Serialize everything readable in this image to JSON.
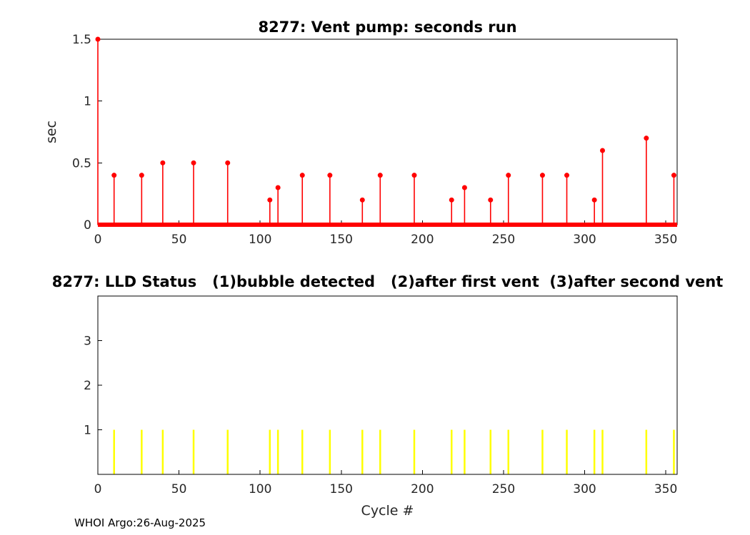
{
  "figure": {
    "footer": "WHOI Argo:26-Aug-2025",
    "background": "#ffffff"
  },
  "chart_data": [
    {
      "type": "stem",
      "title": "8277: Vent pump: seconds run",
      "ylabel": "sec",
      "xlabel": "",
      "xlim": [
        0,
        357
      ],
      "ylim": [
        0,
        1.5
      ],
      "xticks": [
        0,
        50,
        100,
        150,
        200,
        250,
        300,
        350
      ],
      "yticks": [
        0,
        0.5,
        1,
        1.5
      ],
      "color": "#ff0000",
      "grid": false,
      "legend": null,
      "baseline": {
        "y": 0,
        "x_start": 0,
        "x_end": 357
      },
      "x": [
        0,
        10,
        27,
        40,
        59,
        80,
        106,
        111,
        126,
        143,
        163,
        174,
        195,
        218,
        226,
        242,
        253,
        274,
        289,
        306,
        311,
        338,
        355
      ],
      "values": [
        1.5,
        0.4,
        0.4,
        0.5,
        0.5,
        0.5,
        0.2,
        0.3,
        0.4,
        0.4,
        0.2,
        0.4,
        0.4,
        0.2,
        0.3,
        0.2,
        0.4,
        0.4,
        0.4,
        0.2,
        0.6,
        0.7,
        0.4
      ]
    },
    {
      "type": "bar",
      "title": "8277: LLD Status   (1)bubble detected   (2)after first vent  (3)after second vent",
      "ylabel": "",
      "xlabel": "Cycle #",
      "xlim": [
        0,
        357
      ],
      "ylim": [
        0,
        4
      ],
      "xticks": [
        0,
        50,
        100,
        150,
        200,
        250,
        300,
        350
      ],
      "yticks": [
        1,
        2,
        3
      ],
      "color": "#ffff00",
      "grid": false,
      "legend": null,
      "x": [
        10,
        27,
        40,
        59,
        80,
        106,
        111,
        126,
        143,
        163,
        174,
        195,
        218,
        226,
        242,
        253,
        274,
        289,
        306,
        311,
        338,
        355
      ],
      "values": [
        1,
        1,
        1,
        1,
        1,
        1,
        1,
        1,
        1,
        1,
        1,
        1,
        1,
        1,
        1,
        1,
        1,
        1,
        1,
        1,
        1,
        1
      ]
    }
  ]
}
